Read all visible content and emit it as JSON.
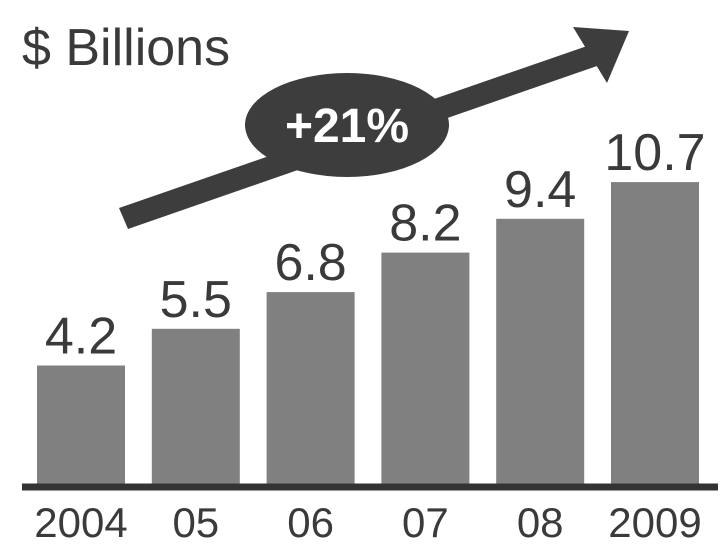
{
  "title": "$ Billions",
  "annotation": {
    "growth_label": "+21%"
  },
  "colors": {
    "bar": "#808080",
    "text": "#3a3a3a",
    "axis": "#333333",
    "arrow": "#3d3d3d"
  },
  "chart_data": {
    "type": "bar",
    "title": "$ Billions",
    "xlabel": "",
    "ylabel": "",
    "categories": [
      "2004",
      "05",
      "06",
      "07",
      "08",
      "2009"
    ],
    "values": [
      4.2,
      5.5,
      6.8,
      8.2,
      9.4,
      10.7
    ],
    "value_labels": [
      "4.2",
      "5.5",
      "6.8",
      "8.2",
      "9.4",
      "10.7"
    ],
    "ylim": [
      0,
      11.2
    ],
    "grid": false,
    "legend": "none",
    "annotations": [
      "+21%"
    ]
  }
}
